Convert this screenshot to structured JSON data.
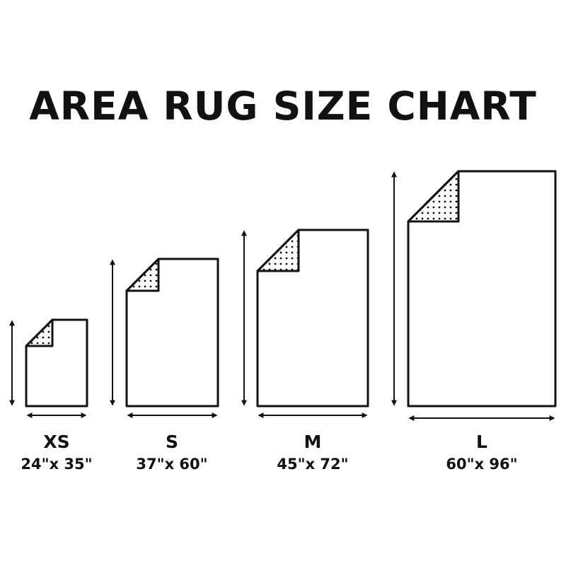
{
  "title": "AREA RUG SIZE CHART",
  "colors": {
    "ink": "#111111",
    "background": "#ffffff"
  },
  "rugs": [
    {
      "label": "XS",
      "size": "24\"x 35\"",
      "width_in": 24,
      "length_in": 35
    },
    {
      "label": "S",
      "size": "37\"x 60\"",
      "width_in": 37,
      "length_in": 60
    },
    {
      "label": "M",
      "size": "45\"x 72\"",
      "width_in": 45,
      "length_in": 72
    },
    {
      "label": "L",
      "size": "60\"x 96\"",
      "width_in": 60,
      "length_in": 96
    }
  ]
}
